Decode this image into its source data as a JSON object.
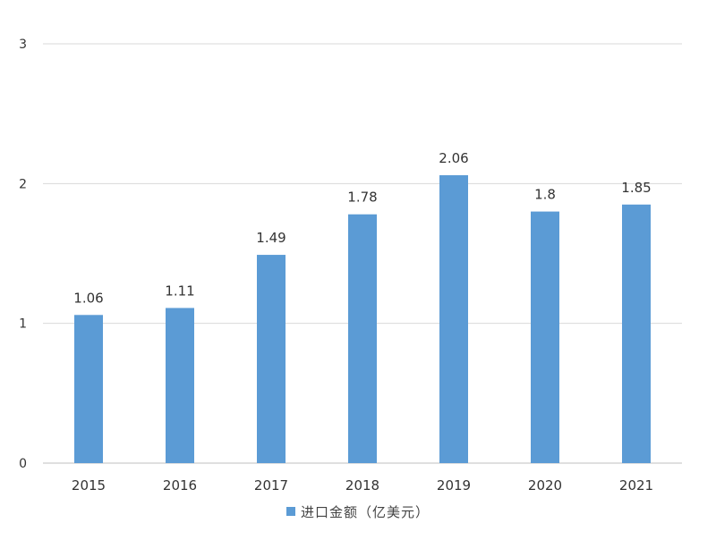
{
  "chart_data": {
    "type": "bar",
    "title": "",
    "xlabel": "",
    "ylabel": "",
    "categories": [
      "2015",
      "2016",
      "2017",
      "2018",
      "2019",
      "2020",
      "2021"
    ],
    "series": [
      {
        "name": "进口金额（亿美元）",
        "values": [
          1.06,
          1.11,
          1.49,
          1.78,
          2.06,
          1.8,
          1.85
        ],
        "labels": [
          "1.06",
          "1.11",
          "1.49",
          "1.78",
          "2.06",
          "1.8",
          "1.85"
        ]
      }
    ],
    "ylim": [
      0,
      3
    ],
    "yticks": [
      "0",
      "1",
      "2",
      "3"
    ],
    "grid": true,
    "legend_position": "bottom",
    "colors": {
      "bar": "#5b9bd5",
      "grid": "#d9d9d9",
      "axis": "#bfbfbf"
    }
  }
}
